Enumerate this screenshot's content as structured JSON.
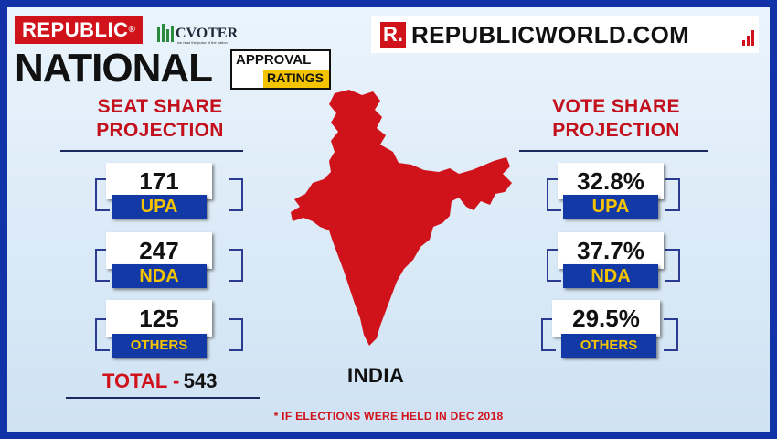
{
  "branding": {
    "republic_badge": "REPUBLIC",
    "republic_badge_mark": "®",
    "cvoter_name": "CVOTER",
    "cvoter_tagline": "we read the pulse of the nation",
    "national": "NATIONAL",
    "approval": "APPROVAL",
    "ratings": "RATINGS",
    "site_mark": "R.",
    "site_name": "REPUBLICWORLD.COM"
  },
  "seat_share": {
    "heading_line1": "SEAT SHARE",
    "heading_line2": "PROJECTION",
    "rows": [
      {
        "value": "171",
        "label": "UPA"
      },
      {
        "value": "247",
        "label": "NDA"
      },
      {
        "value": "125",
        "label": "OTHERS"
      }
    ],
    "total_label": "TOTAL -",
    "total_value": "543"
  },
  "vote_share": {
    "heading_line1": "VOTE SHARE",
    "heading_line2": "PROJECTION",
    "rows": [
      {
        "value": "32.8%",
        "label": "UPA"
      },
      {
        "value": "37.7%",
        "label": "NDA"
      },
      {
        "value": "29.5%",
        "label": "OTHERS"
      }
    ]
  },
  "map": {
    "label": "INDIA",
    "color": "#d0121b"
  },
  "footnote": "* IF ELECTIONS WERE HELD IN DEC 2018",
  "colors": {
    "frame": "#1233a8",
    "accent_red": "#d0121b",
    "label_blue": "#1339a6",
    "label_yellow": "#f5c400"
  }
}
